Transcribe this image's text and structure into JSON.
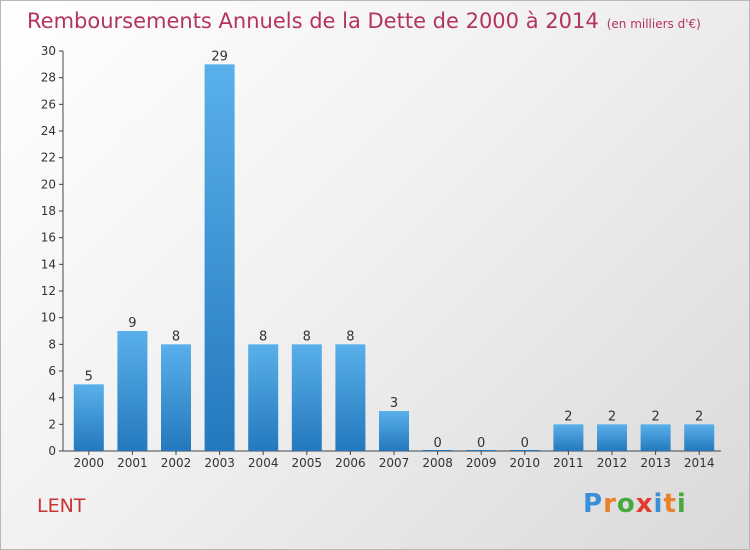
{
  "title": "Remboursements Annuels de la Dette de 2000 à 2014",
  "subtitle": "(en milliers d'€)",
  "location": "LENT",
  "logo": {
    "letters": [
      "P",
      "r",
      "o",
      "x",
      "i",
      "t",
      "i"
    ],
    "colors": [
      "#3a8fd8",
      "#e9802a",
      "#4aa93c",
      "#e23b2f",
      "#3a8fd8",
      "#e9802a",
      "#4aa93c"
    ]
  },
  "colors": {
    "bar_light": "#5ab0ea",
    "bar_dark": "#2478bd",
    "title": "#b4335f",
    "location": "#c73333"
  },
  "chart_data": {
    "type": "bar",
    "categories": [
      "2000",
      "2001",
      "2002",
      "2003",
      "2004",
      "2005",
      "2006",
      "2007",
      "2008",
      "2009",
      "2010",
      "2011",
      "2012",
      "2013",
      "2014"
    ],
    "values": [
      5,
      9,
      8,
      29,
      8,
      8,
      8,
      3,
      0,
      0,
      0,
      2,
      2,
      2,
      2
    ],
    "data_labels": [
      "5",
      "9",
      "8",
      "29",
      "8",
      "8",
      "8",
      "3",
      "0",
      "0",
      "0",
      "2",
      "2",
      "2",
      "2"
    ],
    "ylim": [
      0,
      30
    ],
    "yticks": [
      0,
      2,
      4,
      6,
      8,
      10,
      12,
      14,
      16,
      18,
      20,
      22,
      24,
      26,
      28,
      30
    ],
    "grid": false,
    "legend": "none"
  }
}
